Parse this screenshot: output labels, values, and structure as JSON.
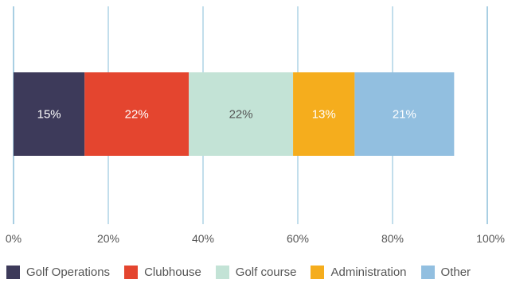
{
  "chart_data": {
    "type": "bar",
    "orientation": "horizontal",
    "stacked": true,
    "categories": [
      ""
    ],
    "series": [
      {
        "name": "Golf Operations",
        "values": [
          15
        ],
        "label": "15%",
        "color": "#3d3a5a",
        "label_color": "#ffffff"
      },
      {
        "name": "Clubhouse",
        "values": [
          22
        ],
        "label": "22%",
        "color": "#e4452f",
        "label_color": "#ffffff"
      },
      {
        "name": "Golf course",
        "values": [
          22
        ],
        "label": "22%",
        "color": "#c3e3d6",
        "label_color": "#555555"
      },
      {
        "name": "Administration",
        "values": [
          13
        ],
        "label": "13%",
        "color": "#f5ad1d",
        "label_color": "#ffffff"
      },
      {
        "name": "Other",
        "values": [
          21
        ],
        "label": "21%",
        "color": "#92bfe0",
        "label_color": "#ffffff"
      }
    ],
    "xlim": [
      0,
      100
    ],
    "xticks": [
      0,
      20,
      40,
      60,
      80,
      100
    ],
    "xtick_labels": [
      "0%",
      "20%",
      "40%",
      "60%",
      "80%",
      "100%"
    ],
    "grid": true,
    "grid_color": "#a9cfe3",
    "legend": "bottom",
    "title": "",
    "xlabel": "",
    "ylabel": ""
  }
}
